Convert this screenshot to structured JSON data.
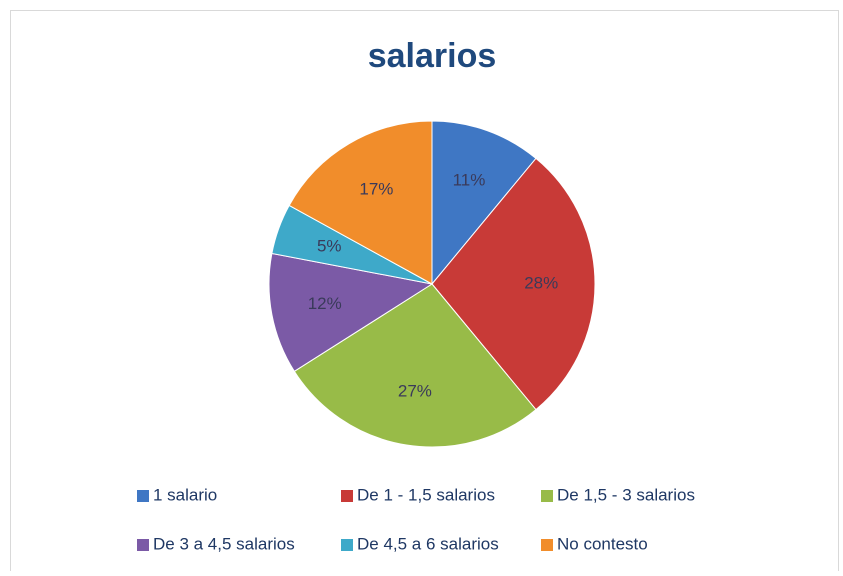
{
  "chart_data": {
    "type": "pie",
    "title": "salarios",
    "categories": [
      "1 salario",
      "De 1 - 1,5 salarios",
      "De 1,5 - 3 salarios",
      "De 3 a 4,5 salarios",
      "De 4,5 a 6 salarios",
      "No contesto"
    ],
    "values": [
      11,
      28,
      27,
      12,
      5,
      17
    ],
    "value_labels": [
      "11%",
      "28%",
      "27%",
      "12%",
      "5%",
      "17%"
    ],
    "colors": [
      "#3f77c4",
      "#c83a37",
      "#98bb48",
      "#7b5aa6",
      "#3ea9c9",
      "#f18d2b"
    ],
    "legend": "bottom"
  }
}
